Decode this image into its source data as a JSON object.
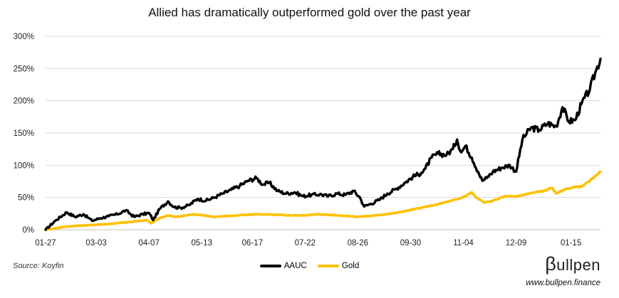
{
  "chart_data": {
    "type": "line",
    "title": "Allied has dramatically outperformed gold over the past year",
    "xlabel": "",
    "ylabel": "",
    "ylim": [
      0,
      300
    ],
    "yticks": [
      0,
      50,
      100,
      150,
      200,
      250,
      300
    ],
    "ytick_labels": [
      "0%",
      "50%",
      "100%",
      "150%",
      "200%",
      "250%",
      "300%"
    ],
    "xticks": [
      "01-27",
      "03-03",
      "04-07",
      "05-13",
      "06-17",
      "07-22",
      "08-26",
      "09-30",
      "11-04",
      "12-09",
      "01-15"
    ],
    "x_count": 263,
    "tick_positions": [
      0,
      24,
      49,
      74,
      98,
      123,
      148,
      173,
      198,
      223,
      249
    ],
    "legend_position": "bottom-center",
    "series": [
      {
        "name": "AAUC",
        "color": "#000000",
        "points": [
          [
            0,
            0
          ],
          [
            5,
            15
          ],
          [
            10,
            27
          ],
          [
            14,
            20
          ],
          [
            18,
            24
          ],
          [
            22,
            14
          ],
          [
            26,
            18
          ],
          [
            30,
            21
          ],
          [
            34,
            24
          ],
          [
            38,
            30
          ],
          [
            42,
            20
          ],
          [
            46,
            24
          ],
          [
            49,
            26
          ],
          [
            51,
            15
          ],
          [
            54,
            32
          ],
          [
            58,
            44
          ],
          [
            61,
            35
          ],
          [
            64,
            34
          ],
          [
            68,
            38
          ],
          [
            72,
            48
          ],
          [
            76,
            45
          ],
          [
            80,
            50
          ],
          [
            84,
            56
          ],
          [
            88,
            62
          ],
          [
            92,
            68
          ],
          [
            96,
            76
          ],
          [
            100,
            80
          ],
          [
            103,
            70
          ],
          [
            106,
            73
          ],
          [
            110,
            60
          ],
          [
            114,
            56
          ],
          [
            118,
            58
          ],
          [
            122,
            52
          ],
          [
            126,
            54
          ],
          [
            130,
            55
          ],
          [
            134,
            52
          ],
          [
            138,
            56
          ],
          [
            142,
            54
          ],
          [
            146,
            60
          ],
          [
            149,
            50
          ],
          [
            151,
            36
          ],
          [
            154,
            40
          ],
          [
            158,
            46
          ],
          [
            162,
            56
          ],
          [
            166,
            63
          ],
          [
            170,
            72
          ],
          [
            174,
            82
          ],
          [
            178,
            88
          ],
          [
            180,
            95
          ],
          [
            183,
            112
          ],
          [
            186,
            118
          ],
          [
            190,
            116
          ],
          [
            193,
            125
          ],
          [
            195,
            140
          ],
          [
            197,
            120
          ],
          [
            199,
            130
          ],
          [
            202,
            112
          ],
          [
            205,
            90
          ],
          [
            207,
            76
          ],
          [
            209,
            80
          ],
          [
            212,
            90
          ],
          [
            216,
            96
          ],
          [
            220,
            100
          ],
          [
            223,
            90
          ],
          [
            226,
            140
          ],
          [
            230,
            158
          ],
          [
            234,
            155
          ],
          [
            238,
            165
          ],
          [
            242,
            160
          ],
          [
            245,
            190
          ],
          [
            248,
            168
          ],
          [
            251,
            170
          ],
          [
            254,
            195
          ],
          [
            258,
            218
          ],
          [
            261,
            248
          ],
          [
            263,
            265
          ]
        ]
      },
      {
        "name": "Gold",
        "color": "#FFC000",
        "points": [
          [
            0,
            0
          ],
          [
            10,
            5
          ],
          [
            20,
            7
          ],
          [
            30,
            9
          ],
          [
            40,
            12
          ],
          [
            48,
            15
          ],
          [
            50,
            10
          ],
          [
            54,
            18
          ],
          [
            58,
            22
          ],
          [
            62,
            20
          ],
          [
            70,
            24
          ],
          [
            80,
            20
          ],
          [
            90,
            22
          ],
          [
            100,
            24
          ],
          [
            110,
            23
          ],
          [
            120,
            22
          ],
          [
            130,
            24
          ],
          [
            140,
            22
          ],
          [
            148,
            20
          ],
          [
            156,
            22
          ],
          [
            166,
            26
          ],
          [
            172,
            30
          ],
          [
            178,
            34
          ],
          [
            184,
            38
          ],
          [
            190,
            43
          ],
          [
            196,
            48
          ],
          [
            200,
            54
          ],
          [
            202,
            58
          ],
          [
            204,
            50
          ],
          [
            208,
            42
          ],
          [
            212,
            45
          ],
          [
            218,
            52
          ],
          [
            224,
            52
          ],
          [
            230,
            57
          ],
          [
            236,
            60
          ],
          [
            240,
            65
          ],
          [
            242,
            56
          ],
          [
            246,
            62
          ],
          [
            250,
            66
          ],
          [
            254,
            67
          ],
          [
            258,
            76
          ],
          [
            261,
            84
          ],
          [
            263,
            90
          ]
        ]
      }
    ],
    "annotations": [
      "Source: Koyfin"
    ]
  },
  "branding": {
    "logo_b": "β",
    "logo_rest": "ullpen",
    "website": "www.bullpen.finance"
  }
}
